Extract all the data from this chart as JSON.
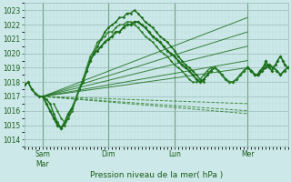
{
  "bg_color": "#cce8e8",
  "grid_major_color": "#99bbbb",
  "grid_minor_color": "#bbdddd",
  "text_color": "#1a5e1a",
  "line_dark": "#1a6e1a",
  "line_mid": "#2a7e2a",
  "line_light": "#4a9e4a",
  "xlabel": "Pression niveau de la mer( hPa )",
  "ylim": [
    1013.5,
    1023.5
  ],
  "yticks": [
    1014,
    1015,
    1016,
    1017,
    1018,
    1019,
    1020,
    1021,
    1022,
    1023
  ],
  "xlim": [
    0,
    360
  ],
  "vline_positions": [
    25,
    115,
    205,
    305
  ],
  "day_labels": [
    "Sam\nMar",
    "Dim",
    "Lun",
    "Mer"
  ],
  "fan_origin_x": 25,
  "fan_origin_y": 1017.0,
  "fan_end_x": 305,
  "fan_targets_upper": [
    1022.5,
    1021.5,
    1020.5,
    1019.5,
    1019.0
  ],
  "fan_targets_lower": [
    1016.5,
    1016.0,
    1015.8
  ],
  "main_line": [
    [
      0,
      1017.8
    ],
    [
      5,
      1018.0
    ],
    [
      10,
      1017.5
    ],
    [
      15,
      1017.2
    ],
    [
      20,
      1017.0
    ],
    [
      25,
      1017.0
    ],
    [
      30,
      1016.5
    ],
    [
      35,
      1016.0
    ],
    [
      40,
      1015.5
    ],
    [
      45,
      1015.0
    ],
    [
      50,
      1014.8
    ],
    [
      55,
      1015.2
    ],
    [
      60,
      1015.8
    ],
    [
      65,
      1016.2
    ],
    [
      70,
      1016.8
    ],
    [
      75,
      1017.5
    ],
    [
      80,
      1018.0
    ],
    [
      85,
      1018.8
    ],
    [
      90,
      1019.5
    ],
    [
      95,
      1020.0
    ],
    [
      100,
      1020.2
    ],
    [
      105,
      1020.5
    ],
    [
      110,
      1020.8
    ],
    [
      115,
      1021.0
    ],
    [
      120,
      1021.2
    ],
    [
      125,
      1021.5
    ],
    [
      130,
      1021.5
    ],
    [
      135,
      1021.8
    ],
    [
      140,
      1022.0
    ],
    [
      145,
      1022.0
    ],
    [
      150,
      1022.2
    ],
    [
      155,
      1022.2
    ],
    [
      160,
      1022.0
    ],
    [
      165,
      1021.8
    ],
    [
      170,
      1021.5
    ],
    [
      175,
      1021.2
    ],
    [
      180,
      1021.0
    ],
    [
      185,
      1020.8
    ],
    [
      190,
      1020.5
    ],
    [
      195,
      1020.2
    ],
    [
      200,
      1020.0
    ],
    [
      205,
      1019.8
    ],
    [
      210,
      1019.5
    ],
    [
      215,
      1019.2
    ],
    [
      220,
      1019.0
    ],
    [
      225,
      1018.8
    ],
    [
      230,
      1018.5
    ],
    [
      235,
      1018.2
    ],
    [
      240,
      1018.0
    ],
    [
      245,
      1018.2
    ],
    [
      250,
      1018.5
    ],
    [
      255,
      1018.8
    ],
    [
      260,
      1019.0
    ],
    [
      265,
      1018.8
    ],
    [
      270,
      1018.5
    ],
    [
      275,
      1018.2
    ],
    [
      280,
      1018.0
    ],
    [
      285,
      1018.0
    ],
    [
      290,
      1018.2
    ],
    [
      295,
      1018.5
    ],
    [
      300,
      1018.8
    ],
    [
      305,
      1019.0
    ],
    [
      310,
      1018.8
    ],
    [
      315,
      1018.5
    ],
    [
      320,
      1018.5
    ],
    [
      325,
      1018.8
    ],
    [
      330,
      1019.0
    ],
    [
      335,
      1019.2
    ],
    [
      340,
      1019.0
    ],
    [
      345,
      1018.8
    ],
    [
      350,
      1018.5
    ],
    [
      355,
      1018.8
    ],
    [
      360,
      1019.0
    ]
  ],
  "secondary_line1": [
    [
      25,
      1017.0
    ],
    [
      30,
      1016.8
    ],
    [
      35,
      1016.5
    ],
    [
      40,
      1015.8
    ],
    [
      45,
      1015.2
    ],
    [
      50,
      1014.8
    ],
    [
      55,
      1015.0
    ],
    [
      60,
      1015.5
    ],
    [
      65,
      1016.0
    ],
    [
      70,
      1016.8
    ],
    [
      75,
      1017.5
    ],
    [
      80,
      1018.2
    ],
    [
      85,
      1018.8
    ],
    [
      90,
      1019.5
    ],
    [
      95,
      1020.0
    ],
    [
      100,
      1020.5
    ],
    [
      105,
      1021.0
    ],
    [
      110,
      1021.5
    ],
    [
      115,
      1021.8
    ],
    [
      120,
      1022.0
    ],
    [
      125,
      1022.2
    ],
    [
      130,
      1022.5
    ],
    [
      135,
      1022.5
    ],
    [
      140,
      1022.8
    ],
    [
      145,
      1022.8
    ],
    [
      150,
      1023.0
    ],
    [
      155,
      1022.8
    ],
    [
      160,
      1022.5
    ],
    [
      165,
      1022.2
    ],
    [
      170,
      1022.0
    ],
    [
      175,
      1021.8
    ],
    [
      180,
      1021.5
    ],
    [
      185,
      1021.2
    ],
    [
      190,
      1021.0
    ],
    [
      195,
      1020.8
    ],
    [
      200,
      1020.5
    ],
    [
      205,
      1020.2
    ],
    [
      210,
      1019.8
    ],
    [
      215,
      1019.5
    ],
    [
      220,
      1019.2
    ],
    [
      225,
      1019.0
    ],
    [
      230,
      1018.8
    ],
    [
      235,
      1018.5
    ],
    [
      240,
      1018.2
    ],
    [
      245,
      1018.0
    ]
  ],
  "secondary_line2": [
    [
      40,
      1016.5
    ],
    [
      45,
      1016.0
    ],
    [
      50,
      1015.5
    ],
    [
      55,
      1015.2
    ],
    [
      60,
      1015.5
    ],
    [
      65,
      1016.0
    ],
    [
      70,
      1016.8
    ],
    [
      75,
      1017.5
    ],
    [
      80,
      1018.2
    ],
    [
      85,
      1019.0
    ],
    [
      90,
      1019.8
    ],
    [
      95,
      1020.2
    ],
    [
      100,
      1020.8
    ],
    [
      105,
      1021.0
    ],
    [
      110,
      1021.2
    ],
    [
      115,
      1021.5
    ],
    [
      120,
      1021.5
    ],
    [
      125,
      1021.8
    ],
    [
      130,
      1022.0
    ],
    [
      135,
      1022.0
    ],
    [
      140,
      1022.2
    ],
    [
      145,
      1022.2
    ],
    [
      150,
      1022.0
    ],
    [
      155,
      1021.8
    ],
    [
      160,
      1021.5
    ],
    [
      165,
      1021.2
    ],
    [
      170,
      1021.0
    ],
    [
      175,
      1020.8
    ],
    [
      180,
      1020.5
    ],
    [
      185,
      1020.2
    ],
    [
      190,
      1020.0
    ],
    [
      195,
      1019.8
    ],
    [
      200,
      1019.5
    ],
    [
      205,
      1019.2
    ],
    [
      210,
      1019.0
    ],
    [
      215,
      1018.8
    ],
    [
      220,
      1018.5
    ],
    [
      225,
      1018.2
    ],
    [
      230,
      1018.0
    ],
    [
      235,
      1018.0
    ],
    [
      240,
      1018.2
    ],
    [
      245,
      1018.5
    ],
    [
      250,
      1018.8
    ],
    [
      255,
      1019.0
    ],
    [
      260,
      1019.0
    ],
    [
      265,
      1018.8
    ],
    [
      270,
      1018.5
    ],
    [
      275,
      1018.2
    ],
    [
      280,
      1018.0
    ],
    [
      285,
      1018.0
    ],
    [
      290,
      1018.2
    ],
    [
      295,
      1018.5
    ],
    [
      300,
      1018.8
    ],
    [
      305,
      1019.0
    ]
  ],
  "end_segment": [
    [
      305,
      1019.0
    ],
    [
      310,
      1018.8
    ],
    [
      315,
      1018.5
    ],
    [
      318,
      1018.5
    ],
    [
      322,
      1018.8
    ],
    [
      326,
      1019.0
    ],
    [
      328,
      1019.2
    ],
    [
      330,
      1019.5
    ],
    [
      332,
      1019.2
    ],
    [
      335,
      1019.0
    ],
    [
      338,
      1018.8
    ],
    [
      340,
      1019.0
    ],
    [
      343,
      1019.2
    ],
    [
      346,
      1019.5
    ],
    [
      350,
      1019.8
    ],
    [
      353,
      1019.5
    ],
    [
      356,
      1019.2
    ],
    [
      360,
      1019.0
    ]
  ]
}
